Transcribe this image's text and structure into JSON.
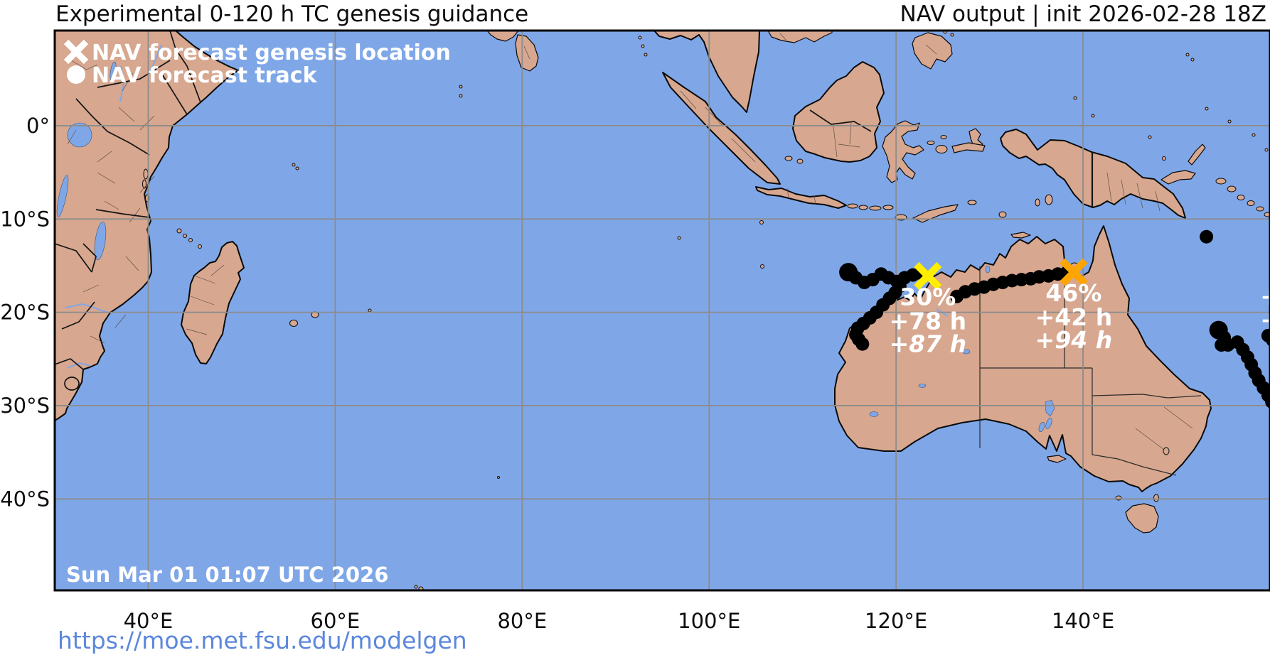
{
  "header": {
    "title_left": "Experimental 0-120 h TC genesis guidance",
    "title_right": "NAV output | init 2026-02-28 18Z"
  },
  "legend": {
    "genesis_label": "NAV forecast genesis location",
    "track_label": "NAV forecast track"
  },
  "map": {
    "timestamp": "Sun Mar 01 01:07 UTC 2026",
    "extent": {
      "lon_min": 30,
      "lon_max": 160,
      "lat_min": -49.8,
      "lat_max": 10.2
    },
    "x_ticks": [
      {
        "lon": 40,
        "label": "40°E"
      },
      {
        "lon": 60,
        "label": "60°E"
      },
      {
        "lon": 80,
        "label": "80°E"
      },
      {
        "lon": 100,
        "label": "100°E"
      },
      {
        "lon": 120,
        "label": "120°E"
      },
      {
        "lon": 140,
        "label": "140°E"
      }
    ],
    "y_ticks": [
      {
        "lat": 0,
        "label": "0°"
      },
      {
        "lat": -10,
        "label": "10°S"
      },
      {
        "lat": -20,
        "label": "20°S"
      },
      {
        "lat": -30,
        "label": "30°S"
      },
      {
        "lat": -40,
        "label": "40°S"
      }
    ],
    "colors": {
      "ocean": "#7fa7e8",
      "land": "#d7a78f",
      "coast": "#0a0a0a",
      "grid": "#8c8c8c",
      "track_dot": "#000000",
      "label_text": "#ffffff",
      "genesis_west": "#ffee00",
      "genesis_east": "#ffa500",
      "url": "#5c87dc"
    },
    "genesis_markers": [
      {
        "name": "west-genesis",
        "lon": 123.4,
        "lat": -16.1,
        "color": "#ffee00",
        "labels": [
          {
            "text": "30%",
            "italic": false
          },
          {
            "text": "+78 h",
            "italic": false
          },
          {
            "text": "+87 h",
            "italic": true
          }
        ]
      },
      {
        "name": "east-genesis",
        "lon": 139.0,
        "lat": -15.7,
        "color": "#ffa500",
        "labels": [
          {
            "text": "46%",
            "italic": false
          },
          {
            "text": "+42 h",
            "italic": false
          },
          {
            "text": "+94 h",
            "italic": true
          }
        ]
      }
    ],
    "edge_fragments": [
      {
        "text": "+",
        "lon": 158.95,
        "lat": -19.2
      },
      {
        "text": "+",
        "lon": 158.95,
        "lat": -21.7
      }
    ],
    "track_dot_radius": 9.5,
    "tracks": [
      {
        "name": "west-track",
        "points": [
          [
            114.9,
            -15.7,
            13
          ],
          [
            115.7,
            -16.3
          ],
          [
            116.6,
            -16.8
          ],
          [
            117.5,
            -16.5
          ],
          [
            118.4,
            -15.9
          ],
          [
            119.2,
            -16.3
          ],
          [
            120.1,
            -16.7
          ],
          [
            120.9,
            -16.3
          ],
          [
            121.8,
            -16.0
          ],
          [
            122.6,
            -15.8
          ]
        ]
      },
      {
        "name": "west-branch-track",
        "points": [
          [
            120.4,
            -17.2
          ],
          [
            119.9,
            -17.9
          ],
          [
            119.3,
            -18.5
          ],
          [
            118.6,
            -19.2
          ],
          [
            117.9,
            -20.0
          ],
          [
            117.2,
            -20.6
          ],
          [
            116.5,
            -21.2
          ],
          [
            115.9,
            -21.7
          ],
          [
            115.7,
            -22.4
          ],
          [
            116.0,
            -22.9
          ],
          [
            116.4,
            -23.4
          ]
        ]
      },
      {
        "name": "east-track",
        "points": [
          [
            126.5,
            -18.3
          ],
          [
            127.4,
            -17.8
          ],
          [
            128.4,
            -17.5
          ],
          [
            129.4,
            -17.3
          ],
          [
            130.4,
            -17.0
          ],
          [
            131.4,
            -16.8
          ],
          [
            132.4,
            -16.6
          ],
          [
            133.4,
            -16.5
          ],
          [
            134.4,
            -16.4
          ],
          [
            135.3,
            -16.2
          ],
          [
            136.3,
            -16.1
          ],
          [
            137.3,
            -15.9
          ],
          [
            138.3,
            -15.7
          ]
        ]
      },
      {
        "name": "coral-sea-track",
        "points": [
          [
            154.5,
            -21.9,
            13
          ],
          [
            155.1,
            -22.7
          ],
          [
            154.8,
            -23.5
          ],
          [
            155.5,
            -23.5
          ],
          [
            156.5,
            -23.2
          ],
          [
            157.1,
            -24.0
          ],
          [
            157.6,
            -24.8
          ],
          [
            158.0,
            -25.6
          ],
          [
            158.4,
            -26.5
          ],
          [
            158.8,
            -27.3
          ],
          [
            159.3,
            -28.1
          ],
          [
            159.8,
            -28.9
          ],
          [
            160.2,
            -29.6
          ],
          [
            159.8,
            -22.5
          ],
          [
            160.3,
            -23.0
          ]
        ]
      },
      {
        "name": "lone-dot",
        "points": [
          [
            153.2,
            -11.9
          ]
        ]
      }
    ]
  },
  "footer": {
    "url": "https://moe.met.fsu.edu/modelgen"
  }
}
